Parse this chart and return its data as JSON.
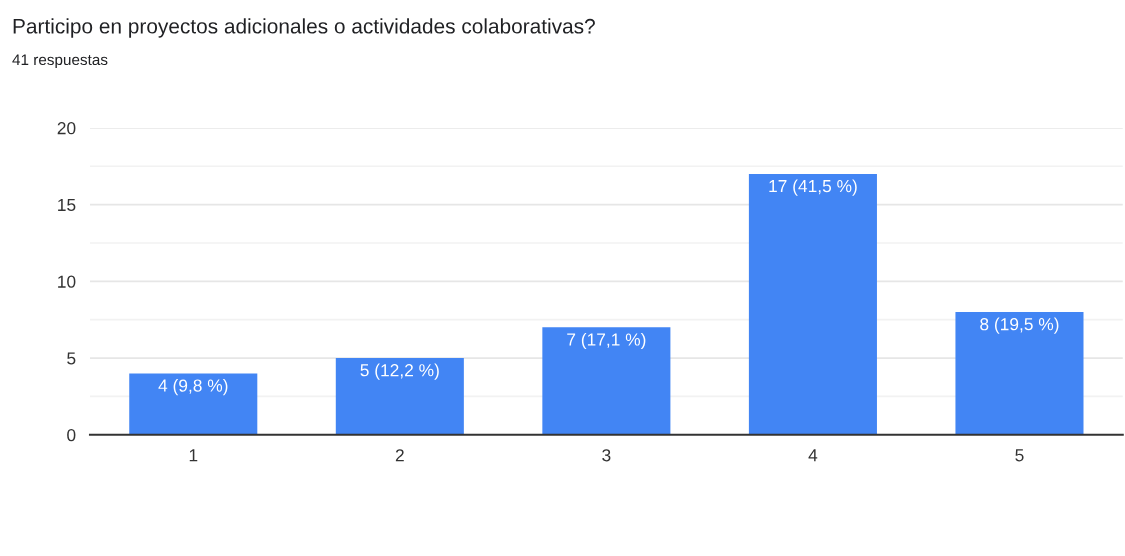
{
  "chart_data": {
    "type": "bar",
    "title": "Participo en proyectos adicionales o actividades colaborativas?",
    "subtitle": "41 respuestas",
    "categories": [
      "1",
      "2",
      "3",
      "4",
      "5"
    ],
    "values": [
      4,
      5,
      7,
      17,
      8
    ],
    "value_labels": [
      "4 (9,8 %)",
      "5 (12,2 %)",
      "7 (17,1 %)",
      "17 (41,5 %)",
      "8 (19,5 %)"
    ],
    "color": "#4285f4",
    "ylim": [
      0,
      20
    ],
    "yticks": [
      0,
      {
        "value": 2.5,
        "label": null
      },
      5,
      {
        "value": 7.5,
        "label": null
      },
      10,
      {
        "value": 12.5,
        "label": null
      },
      15,
      {
        "value": 17.5,
        "label": null
      },
      20
    ],
    "grid": "y",
    "legend": false
  }
}
